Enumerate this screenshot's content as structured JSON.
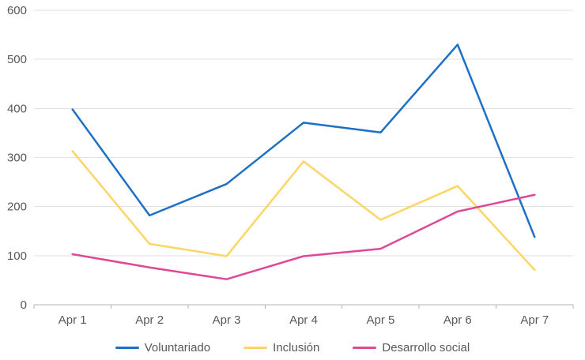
{
  "chart_data": {
    "type": "line",
    "title": "",
    "xlabel": "",
    "ylabel": "",
    "categories": [
      "Apr 1",
      "Apr 2",
      "Apr 3",
      "Apr 4",
      "Apr 5",
      "Apr 6",
      "Apr 7"
    ],
    "series": [
      {
        "name": "Voluntariado",
        "color": "#1d70c5",
        "values": [
          398,
          182,
          246,
          371,
          351,
          530,
          138
        ]
      },
      {
        "name": "Inclusión",
        "color": "#fbd666",
        "values": [
          313,
          124,
          99,
          292,
          173,
          242,
          71
        ]
      },
      {
        "name": "Desarrollo social",
        "color": "#df4797",
        "values": [
          103,
          76,
          52,
          99,
          114,
          190,
          224
        ]
      }
    ],
    "ylim": [
      0,
      600
    ],
    "yticks": [
      0,
      100,
      200,
      300,
      400,
      500,
      600
    ],
    "grid": true,
    "legend_position": "bottom"
  },
  "style_colors": {
    "gridline": "#e2e2e2",
    "axis_line": "#b3b3b3",
    "tick_mark": "#b3b3b3",
    "axis_text": "#595959"
  }
}
